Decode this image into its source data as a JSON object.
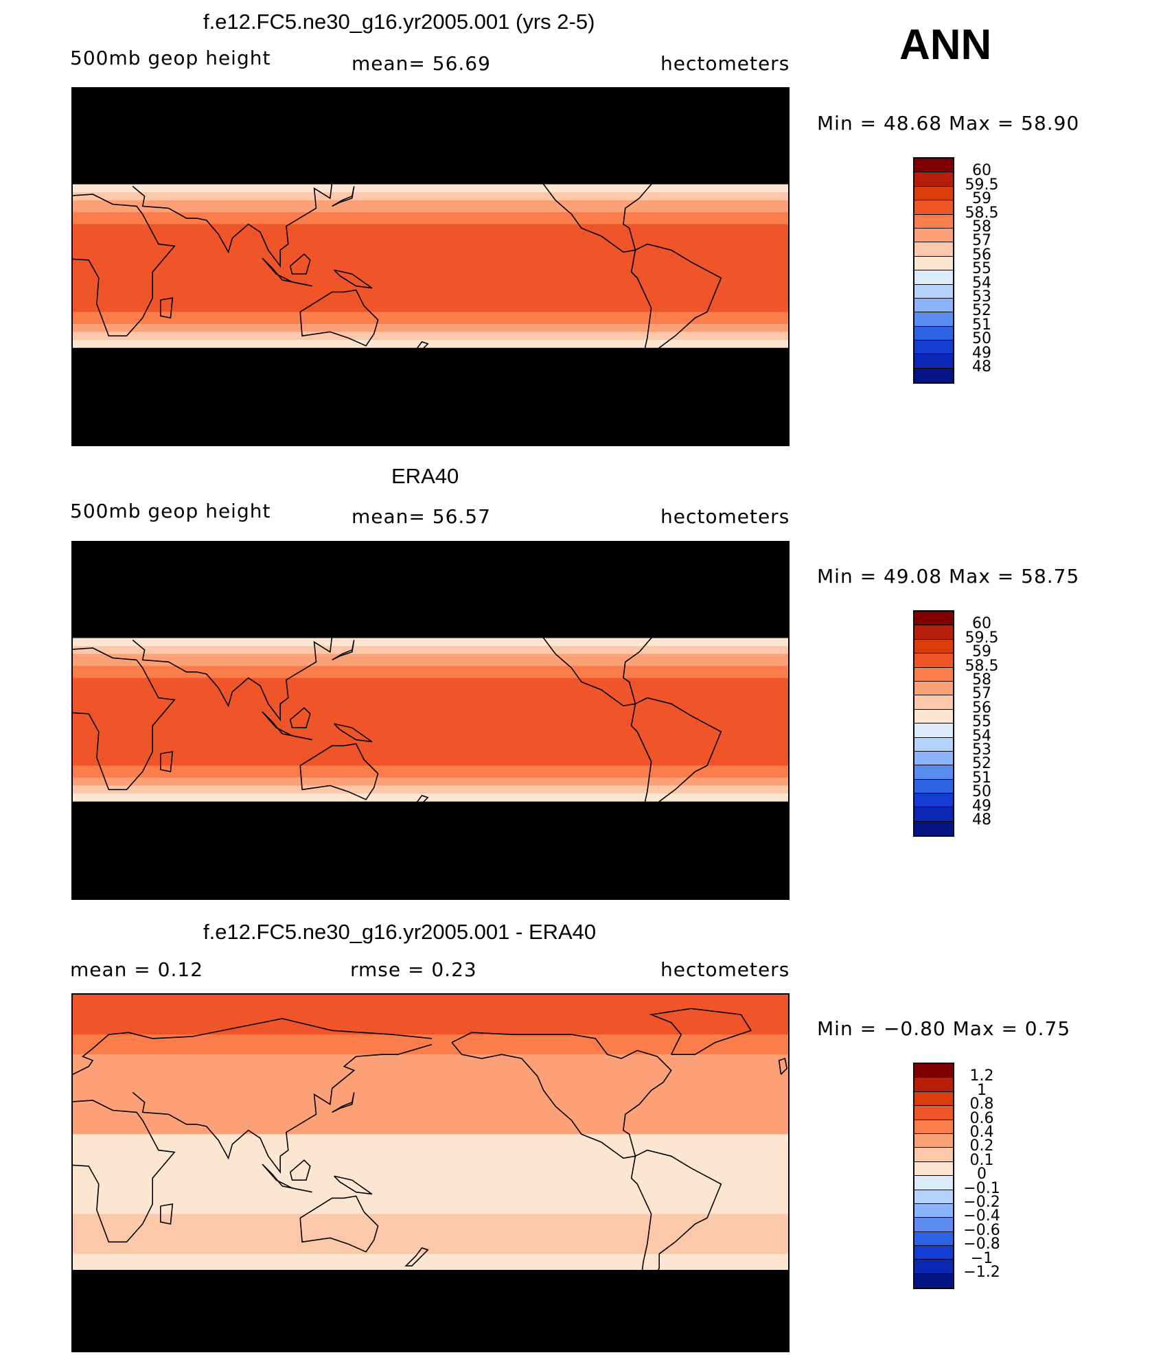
{
  "season": "ANN",
  "colors": {
    "reds": [
      "#7f0000",
      "#b41e0a",
      "#dc3c0a",
      "#f0552a",
      "#fa7d4b",
      "#fca078",
      "#fcc8aa",
      "#fce6d2"
    ],
    "blues": [
      "#dcebfa",
      "#b4d2fa",
      "#8cb4fa",
      "#5a8cf0",
      "#2d64e6",
      "#143cd2",
      "#0a28b4",
      "#051482"
    ],
    "ocean_line": "#000000"
  },
  "panels": [
    {
      "title": "f.e12.FC5.ne30_g16.yr2005.001 (yrs 2-5)",
      "left_label": "500mb  geop  height",
      "center_label": "mean=   56.69",
      "right_label": "hectometers",
      "min_max": "Min  =    48.68  Max  =    58.90",
      "legend_ticks": [
        "60",
        "59.5",
        "59",
        "58.5",
        "58",
        "57",
        "56",
        "55",
        "54",
        "53",
        "52",
        "51",
        "50",
        "49",
        "48"
      ],
      "field": "model"
    },
    {
      "title": "ERA40",
      "left_label": "500mb  geop  height",
      "center_label": "mean=   56.57",
      "right_label": "hectometers",
      "min_max": "Min  =    49.08  Max  =    58.75",
      "legend_ticks": [
        "60",
        "59.5",
        "59",
        "58.5",
        "58",
        "57",
        "56",
        "55",
        "54",
        "53",
        "52",
        "51",
        "50",
        "49",
        "48"
      ],
      "field": "obs"
    },
    {
      "title": "f.e12.FC5.ne30_g16.yr2005.001 - ERA40",
      "left_label": "mean  =      0.12",
      "center_label": "rmse  =      0.23",
      "right_label": "hectometers",
      "min_max": "Min  =    −0.80  Max  =      0.75",
      "legend_ticks": [
        "1.2",
        "1",
        "0.8",
        "0.6",
        "0.4",
        "0.2",
        "0.1",
        "0",
        "−0.1",
        "−0.2",
        "−0.4",
        "−0.6",
        "−0.8",
        "−1",
        "−1.2"
      ],
      "field": "diff"
    }
  ]
}
